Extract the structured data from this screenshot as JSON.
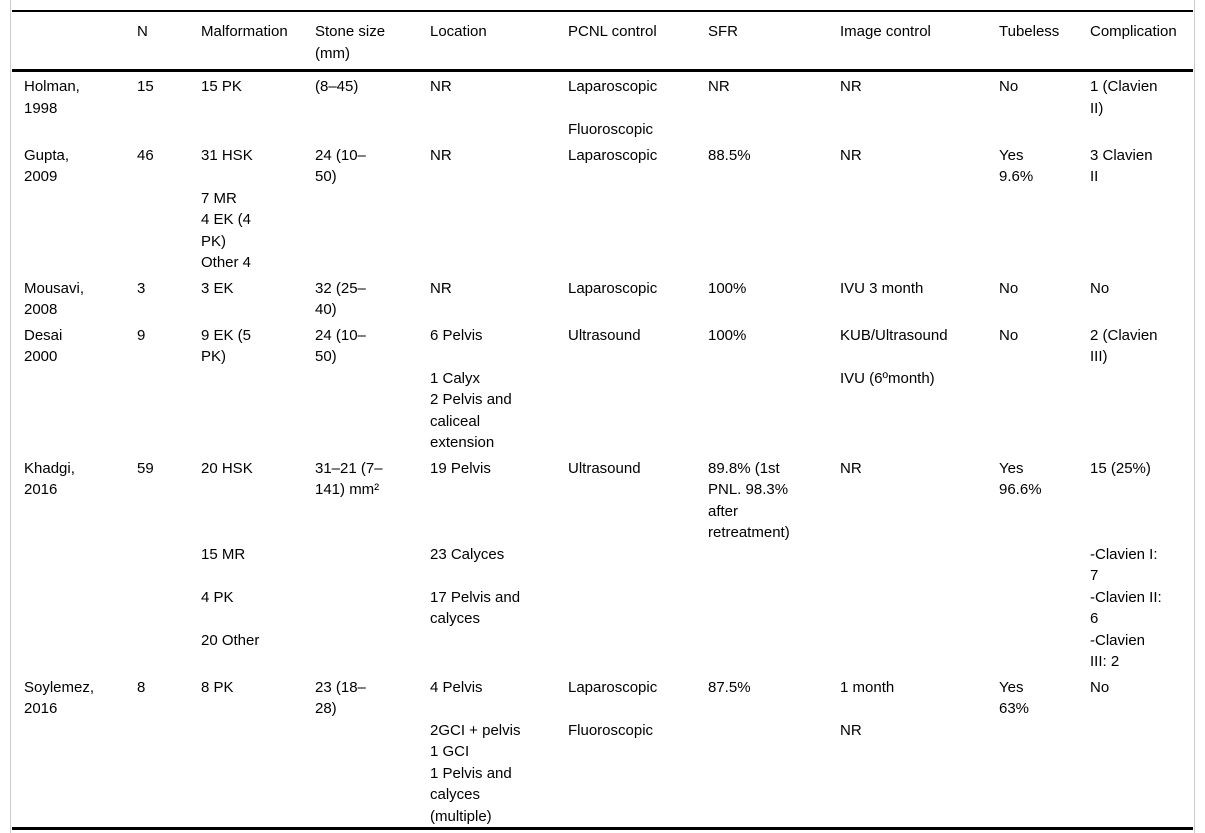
{
  "table": {
    "columns": [
      "",
      "N",
      "Malformation",
      [
        "Stone size",
        "(mm)"
      ],
      "Location",
      "PCNL control",
      "SFR",
      "Image control",
      "Tubeless",
      "Complication"
    ],
    "rows": [
      [
        [
          "Holman,",
          "1998"
        ],
        "15",
        "15 PK",
        "(8–45)",
        "NR",
        [
          "Laparoscopic",
          "",
          "Fluoroscopic"
        ],
        "NR",
        "NR",
        "No",
        [
          "1 (Clavien",
          "II)"
        ]
      ],
      [
        [
          "Gupta,",
          "2009"
        ],
        "46",
        [
          "31 HSK",
          "",
          "7 MR",
          "4 EK (4",
          "PK)",
          "Other 4"
        ],
        [
          "24 (10–",
          "50)"
        ],
        "NR",
        "Laparoscopic",
        "88.5%",
        "NR",
        [
          "Yes",
          "9.6%"
        ],
        [
          "3 Clavien",
          "II"
        ]
      ],
      [
        [
          "Mousavi,",
          "2008"
        ],
        "3",
        "3 EK",
        [
          "32 (25–",
          "40)"
        ],
        "NR",
        "Laparoscopic",
        "100%",
        "IVU 3 month",
        "No",
        "No"
      ],
      [
        [
          "Desai",
          "2000"
        ],
        "9",
        [
          "9 EK (5",
          "PK)"
        ],
        [
          "24 (10–",
          "50)"
        ],
        [
          "6 Pelvis",
          "",
          "1 Calyx",
          "2 Pelvis and",
          "caliceal",
          "extension"
        ],
        "Ultrasound",
        "100%",
        [
          "KUB/Ultrasound",
          "",
          "IVU (6ºmonth)"
        ],
        "No",
        [
          "2 (Clavien",
          "III)"
        ]
      ],
      [
        [
          "Khadgi,",
          "2016"
        ],
        "59",
        [
          "20 HSK",
          "",
          "",
          "",
          "15 MR",
          "",
          "4 PK",
          "",
          "20 Other"
        ],
        [
          "31–21 (7–",
          "141) mm²"
        ],
        [
          "19 Pelvis",
          "",
          "",
          "",
          "23 Calyces",
          "",
          "17 Pelvis and",
          "calyces"
        ],
        "Ultrasound",
        [
          "89.8% (1st",
          "PNL. 98.3%",
          "after",
          "retreatment)"
        ],
        "NR",
        [
          "Yes",
          "96.6%"
        ],
        [
          "15 (25%)",
          "",
          "",
          "",
          "-Clavien I:",
          "7",
          "-Clavien II:",
          "6",
          "-Clavien",
          "III: 2"
        ]
      ],
      [
        [
          "Soylemez,",
          "2016"
        ],
        "8",
        "8 PK",
        [
          "23 (18–",
          "28)"
        ],
        [
          "4 Pelvis",
          "",
          "2GCI + pelvis",
          "1 GCI",
          "1 Pelvis and",
          "calyces",
          "(multiple)"
        ],
        [
          "Laparoscopic",
          "",
          "Fluoroscopic"
        ],
        "87.5%",
        [
          "1 month",
          "",
          "NR"
        ],
        [
          "Yes",
          "63%"
        ],
        "No"
      ]
    ]
  }
}
